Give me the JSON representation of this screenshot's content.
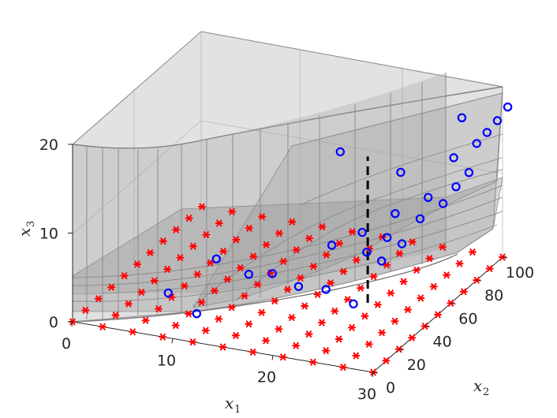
{
  "chart_data": {
    "type": "scatter3d",
    "title": "",
    "axes": {
      "x1": {
        "label": "x",
        "subscript": "1",
        "range": [
          0,
          30
        ],
        "ticks": [
          "0",
          "10",
          "20",
          "30"
        ]
      },
      "x2": {
        "label": "x",
        "subscript": "2",
        "range": [
          0,
          100
        ],
        "ticks": [
          "0",
          "20",
          "40",
          "60",
          "80",
          "100"
        ]
      },
      "x3": {
        "label": "x",
        "subscript": "3",
        "range": [
          0,
          20
        ],
        "ticks": [
          "0",
          "10",
          "20"
        ]
      }
    },
    "grid": true,
    "legend": "none",
    "colors": {
      "ground_markers": "#ff0000",
      "sample_markers": "#0000ff",
      "surfaces": "#9e9e9e",
      "dashed_line": "#000000"
    },
    "series": [
      {
        "marker": "asterisk",
        "color": "#ff0000",
        "x1_values": [
          0,
          3,
          6,
          9,
          12,
          15,
          18,
          21,
          24,
          27,
          30
        ],
        "x2_values": [
          0,
          10,
          20,
          30,
          40,
          50,
          60,
          70,
          80,
          90,
          100
        ],
        "x3": 0
      },
      {
        "marker": "circle",
        "color": "#0000ff",
        "points": [
          [
            8,
            12,
            3.2
          ],
          [
            12,
            3,
            2.8
          ],
          [
            11,
            26,
            5.8
          ],
          [
            15,
            20,
            5.6
          ],
          [
            18,
            15,
            6.9
          ],
          [
            21,
            12,
            6.4
          ],
          [
            24,
            10,
            6.9
          ],
          [
            27,
            8,
            6.1
          ],
          [
            22,
            30,
            8.9
          ],
          [
            26,
            26,
            9.4
          ],
          [
            28,
            22,
            9.3
          ],
          [
            24,
            38,
            9.7
          ],
          [
            27,
            34,
            10.2
          ],
          [
            29,
            30,
            10.4
          ],
          [
            26,
            48,
            10.9
          ],
          [
            29,
            44,
            11.4
          ],
          [
            28,
            58,
            11.8
          ],
          [
            30,
            54,
            12.0
          ],
          [
            30,
            64,
            12.6
          ],
          [
            30,
            74,
            12.9
          ],
          [
            25,
            60,
            13.8
          ],
          [
            29,
            70,
            14.9
          ],
          [
            30,
            80,
            15.4
          ],
          [
            30,
            88,
            15.6
          ],
          [
            30,
            96,
            15.9
          ],
          [
            30,
            104,
            16.4
          ],
          [
            20,
            52,
            16.2
          ],
          [
            28,
            84,
            17.4
          ]
        ]
      }
    ],
    "annotations": [
      {
        "type": "dashed_vertical",
        "x1": 23,
        "x2": 50,
        "x3_range": [
          0,
          16.5
        ]
      }
    ]
  }
}
